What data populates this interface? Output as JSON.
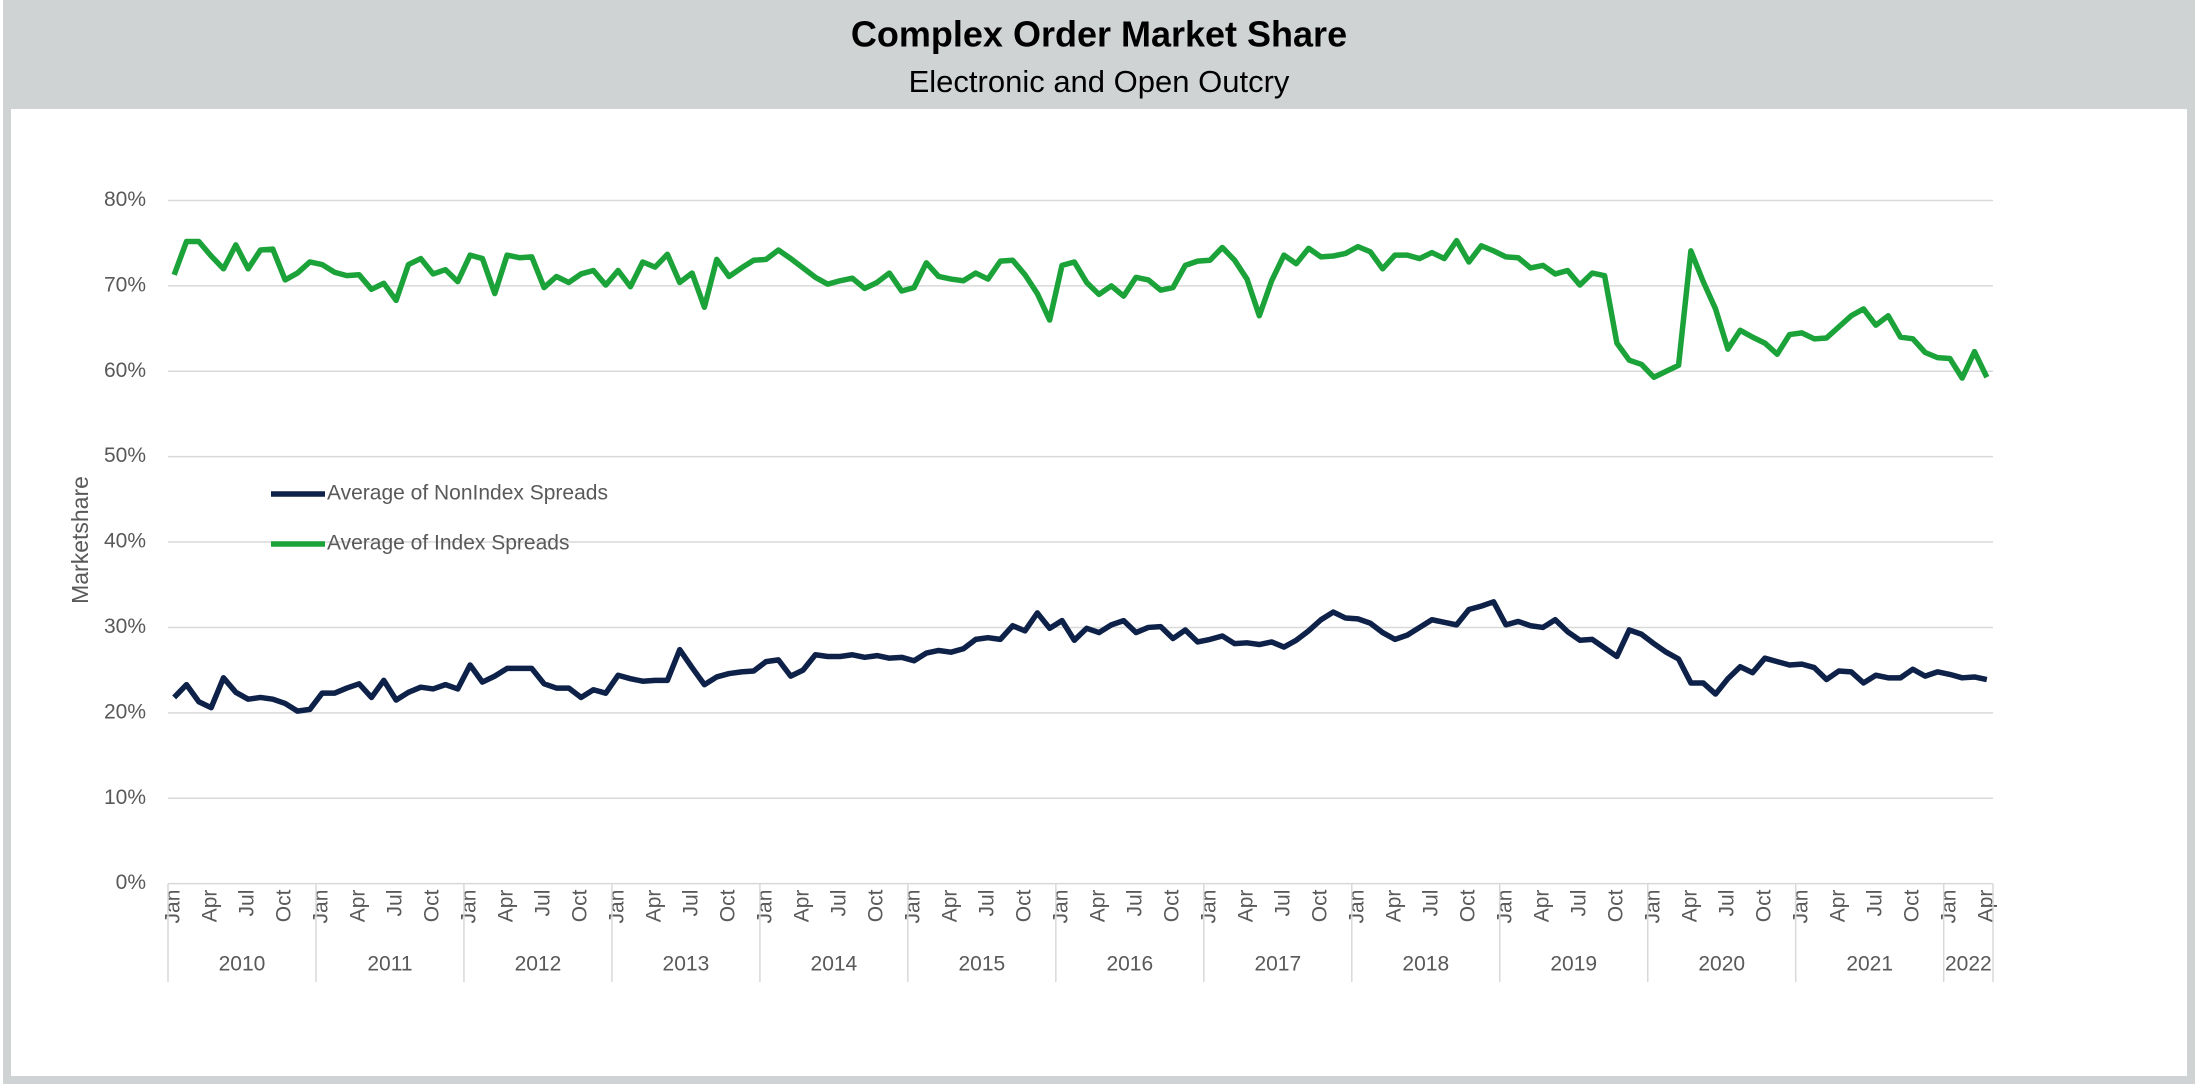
{
  "chart_data": {
    "type": "line",
    "title": "Complex Order Market Share",
    "subtitle": "Electronic and Open Outcry",
    "y_label": "Marketshare",
    "categories": [
      "Jan",
      null,
      null,
      "Apr",
      null,
      null,
      "Jul",
      null,
      null,
      "Oct",
      null,
      null,
      "Jan",
      null,
      null,
      "Apr",
      null,
      null,
      "Jul",
      null,
      null,
      "Oct",
      null,
      null,
      "Jan",
      null,
      null,
      "Apr",
      null,
      null,
      "Jul",
      null,
      null,
      "Oct",
      null,
      null,
      "Jan",
      null,
      null,
      "Apr",
      null,
      null,
      "Jul",
      null,
      null,
      "Oct",
      null,
      null,
      "Jan",
      null,
      null,
      "Apr",
      null,
      null,
      "Jul",
      null,
      null,
      "Oct",
      null,
      null,
      "Jan",
      null,
      null,
      "Apr",
      null,
      null,
      "Jul",
      null,
      null,
      "Oct",
      null,
      null,
      "Jan",
      null,
      null,
      "Apr",
      null,
      null,
      "Jul",
      null,
      null,
      "Oct",
      null,
      null,
      "Jan",
      null,
      null,
      "Apr",
      null,
      null,
      "Jul",
      null,
      null,
      "Oct",
      null,
      null,
      "Jan",
      null,
      null,
      "Apr",
      null,
      null,
      "Jul",
      null,
      null,
      "Oct",
      null,
      null,
      "Jan",
      null,
      null,
      "Apr",
      null,
      null,
      "Jul",
      null,
      null,
      "Oct",
      null,
      null,
      "Jan",
      null,
      null,
      "Apr",
      null,
      null,
      "Jul",
      null,
      null,
      "Oct",
      null,
      null,
      "Jan",
      null,
      null,
      "Apr",
      null,
      null,
      "Jul",
      null,
      null,
      "Oct",
      null,
      null,
      "Jan",
      null,
      null,
      "Apr"
    ],
    "years": [
      "2010",
      "2011",
      "2012",
      "2013",
      "2014",
      "2015",
      "2016",
      "2017",
      "2018",
      "2019",
      "2020",
      "2021",
      "2022"
    ],
    "series": [
      {
        "name": "Average of NonIndex Spreads",
        "color": "#0e2148",
        "values": [
          21.8,
          23.3,
          21.3,
          20.6,
          24.1,
          22.4,
          21.6,
          21.8,
          21.6,
          21.1,
          20.2,
          20.4,
          22.3,
          22.3,
          22.9,
          23.4,
          21.8,
          23.8,
          21.5,
          22.4,
          23.0,
          22.8,
          23.3,
          22.8,
          25.6,
          23.6,
          24.3,
          25.2,
          25.2,
          25.2,
          23.4,
          22.9,
          22.9,
          21.8,
          22.7,
          22.3,
          24.4,
          24.0,
          23.7,
          23.8,
          23.8,
          27.4,
          25.3,
          23.3,
          24.2,
          24.6,
          24.8,
          24.9,
          26.0,
          26.2,
          24.3,
          25.0,
          26.8,
          26.6,
          26.6,
          26.8,
          26.5,
          26.7,
          26.4,
          26.5,
          26.1,
          27.0,
          27.3,
          27.1,
          27.5,
          28.6,
          28.8,
          28.6,
          30.2,
          29.6,
          31.7,
          29.9,
          30.8,
          28.5,
          29.9,
          29.4,
          30.3,
          30.8,
          29.4,
          30.0,
          30.1,
          28.7,
          29.7,
          28.3,
          28.6,
          29.0,
          28.1,
          28.2,
          28.0,
          28.3,
          27.7,
          28.5,
          29.6,
          30.9,
          31.8,
          31.1,
          31.0,
          30.5,
          29.4,
          28.6,
          29.1,
          30.0,
          30.9,
          30.6,
          30.3,
          32.1,
          32.5,
          33.0,
          30.3,
          30.7,
          30.2,
          30.0,
          30.9,
          29.5,
          28.5,
          28.6,
          27.6,
          26.6,
          29.7,
          29.2,
          28.1,
          27.1,
          26.3,
          23.5,
          23.5,
          22.2,
          24.0,
          25.4,
          24.7,
          26.4,
          26.0,
          25.6,
          25.7,
          25.3,
          23.9,
          24.9,
          24.8,
          23.5,
          24.4,
          24.1,
          24.1,
          25.1,
          24.3,
          24.8,
          24.5,
          24.1,
          24.2,
          23.9
        ]
      },
      {
        "name": "Average of Index Spreads",
        "color": "#1ba339",
        "values": [
          71.3,
          75.2,
          75.2,
          73.5,
          72.0,
          74.8,
          72.0,
          74.2,
          74.3,
          70.7,
          71.5,
          72.8,
          72.5,
          71.6,
          71.2,
          71.3,
          69.6,
          70.3,
          68.3,
          72.5,
          73.2,
          71.4,
          71.9,
          70.5,
          73.6,
          73.2,
          69.1,
          73.6,
          73.3,
          73.4,
          69.8,
          71.1,
          70.4,
          71.4,
          71.8,
          70.1,
          71.8,
          69.9,
          72.8,
          72.2,
          73.7,
          70.4,
          71.5,
          67.5,
          73.1,
          71.1,
          72.1,
          73.0,
          73.1,
          74.2,
          73.2,
          72.1,
          71.0,
          70.2,
          70.6,
          70.9,
          69.7,
          70.4,
          71.5,
          69.4,
          69.8,
          72.7,
          71.1,
          70.8,
          70.6,
          71.5,
          70.8,
          72.9,
          73.0,
          71.3,
          69.1,
          66.0,
          72.4,
          72.8,
          70.4,
          69.0,
          70.0,
          68.8,
          71.0,
          70.7,
          69.5,
          69.8,
          72.4,
          72.9,
          73.0,
          74.5,
          73.0,
          70.8,
          66.5,
          70.6,
          73.6,
          72.6,
          74.4,
          73.4,
          73.5,
          73.8,
          74.6,
          74.0,
          72.0,
          73.6,
          73.6,
          73.2,
          73.9,
          73.2,
          75.3,
          72.8,
          74.7,
          74.1,
          73.4,
          73.3,
          72.1,
          72.4,
          71.4,
          71.8,
          70.1,
          71.5,
          71.2,
          63.3,
          61.3,
          60.8,
          59.3,
          60.0,
          60.7,
          74.1,
          70.5,
          67.3,
          62.6,
          64.8,
          64.0,
          63.3,
          62.0,
          64.3,
          64.5,
          63.8,
          63.9,
          65.2,
          66.5,
          67.3,
          65.4,
          66.5,
          64.0,
          63.8,
          62.2,
          61.6,
          61.5,
          59.2,
          62.3,
          59.3
        ]
      }
    ],
    "ylim": [
      0,
      80
    ],
    "yticks": [
      {
        "value": 0,
        "label": "0%"
      },
      {
        "value": 10,
        "label": "10%"
      },
      {
        "value": 20,
        "label": "20%"
      },
      {
        "value": 30,
        "label": "30%"
      },
      {
        "value": 40,
        "label": "40%"
      },
      {
        "value": 50,
        "label": "50%"
      },
      {
        "value": 60,
        "label": "60%"
      },
      {
        "value": 70,
        "label": "70%"
      },
      {
        "value": 80,
        "label": "80%"
      }
    ],
    "grid": true
  }
}
